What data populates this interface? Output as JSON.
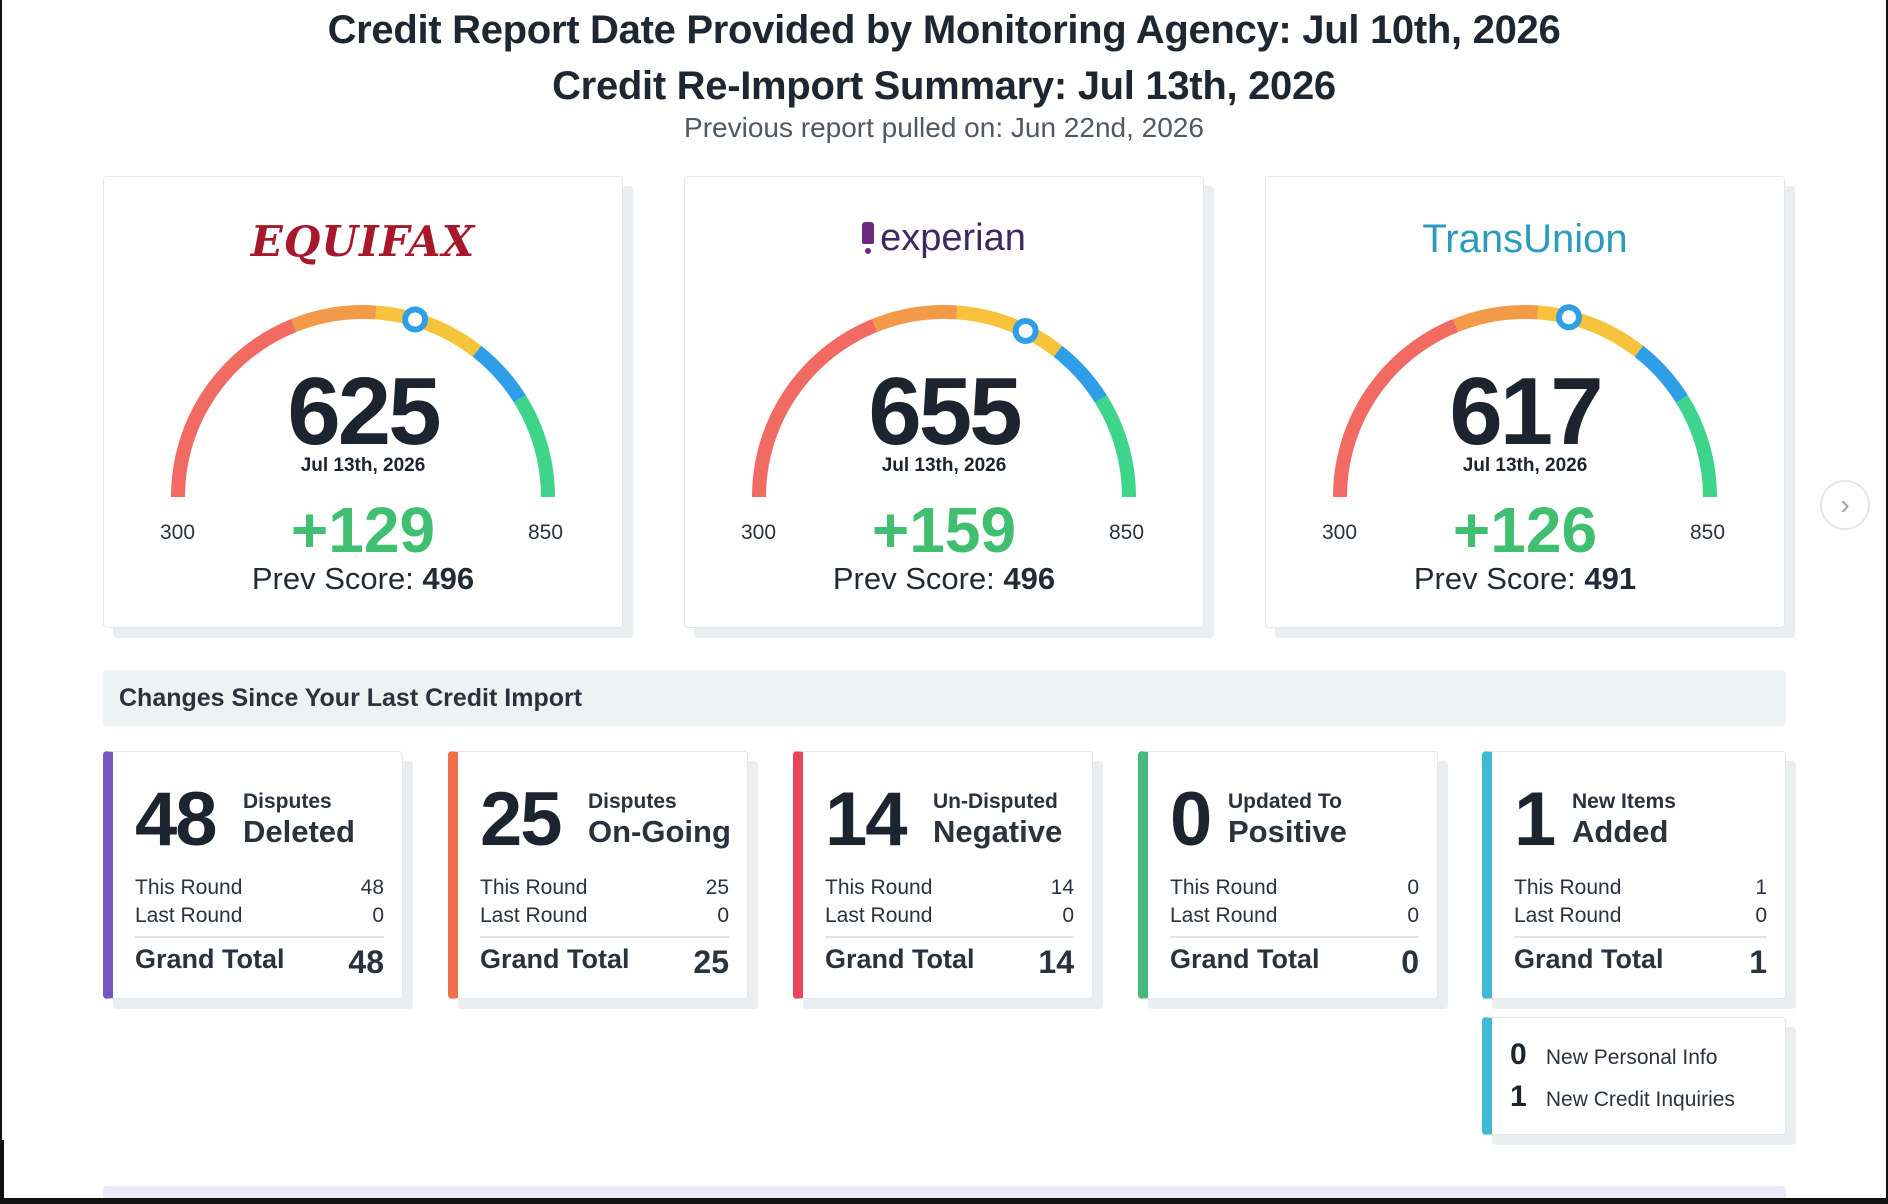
{
  "header": {
    "title1": "Credit Report Date Provided by Monitoring Agency: Jul 10th, 2026",
    "title2": "Credit Re-Import Summary: Jul 13th, 2026",
    "subtitle": "Previous report pulled on: Jun 22nd, 2026"
  },
  "gauge_colors": {
    "red": "#f26b63",
    "orange": "#f29a4a",
    "yellow": "#f7c33c",
    "blue": "#2f9ee8",
    "green": "#3fd48c"
  },
  "bureaus": [
    {
      "logo": "EQUIFAX",
      "score": "625",
      "date": "Jul 13th, 2026",
      "delta": "+129",
      "prev_label": "Prev Score:",
      "prev": "496",
      "min": "300",
      "max": "850",
      "value": 625
    },
    {
      "logo": "experian",
      "score": "655",
      "date": "Jul 13th, 2026",
      "delta": "+159",
      "prev_label": "Prev Score:",
      "prev": "496",
      "min": "300",
      "max": "850",
      "value": 655
    },
    {
      "logo": "TransUnion",
      "score": "617",
      "date": "Jul 13th, 2026",
      "delta": "+126",
      "prev_label": "Prev Score:",
      "prev": "491",
      "min": "300",
      "max": "850",
      "value": 617
    }
  ],
  "changes_title": "Changes Since Your Last Credit Import",
  "stats": [
    {
      "big": "48",
      "top": "Disputes",
      "main": "Deleted",
      "this_label": "This Round",
      "this": "48",
      "last_label": "Last Round",
      "last": "0",
      "gt_label": "Grand Total",
      "gt": "48",
      "color": "#7a56c2"
    },
    {
      "big": "25",
      "top": "Disputes",
      "main": "On-Going",
      "this_label": "This Round",
      "this": "25",
      "last_label": "Last Round",
      "last": "0",
      "gt_label": "Grand Total",
      "gt": "25",
      "color": "#ef6f4a"
    },
    {
      "big": "14",
      "top": "Un-Disputed",
      "main": "Negative",
      "this_label": "This Round",
      "this": "14",
      "last_label": "Last Round",
      "last": "0",
      "gt_label": "Grand Total",
      "gt": "14",
      "color": "#e9445c"
    },
    {
      "big": "0",
      "top": "Updated To",
      "main": "Positive",
      "this_label": "This Round",
      "this": "0",
      "last_label": "Last Round",
      "last": "0",
      "gt_label": "Grand Total",
      "gt": "0",
      "color": "#46b97c"
    },
    {
      "big": "1",
      "top": "New Items",
      "main": "Added",
      "this_label": "This Round",
      "this": "1",
      "last_label": "Last Round",
      "last": "0",
      "gt_label": "Grand Total",
      "gt": "1",
      "color": "#3dbbd3"
    }
  ],
  "extra": {
    "personal_count": "0",
    "personal_label": "New Personal Info",
    "inquiries_count": "1",
    "inquiries_label": "New Credit Inquiries"
  },
  "next_icon": "chevron-right-icon"
}
